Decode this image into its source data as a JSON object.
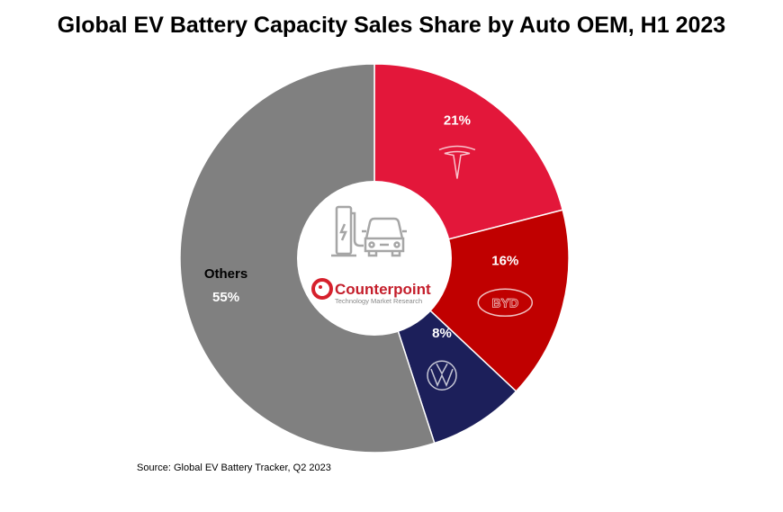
{
  "chart_data": {
    "type": "pie",
    "donut": true,
    "title": "Global EV Battery Capacity Sales Share by Auto OEM, H1 2023",
    "source": "Source: Global EV Battery Tracker, Q2 2023",
    "slices": [
      {
        "name": "Tesla",
        "value": 21,
        "label": "21%",
        "color": "#e3173a",
        "logo": "tesla-logo"
      },
      {
        "name": "BYD",
        "value": 16,
        "label": "16%",
        "color": "#c00000",
        "logo": "byd-logo"
      },
      {
        "name": "Volkswagen",
        "value": 8,
        "label": "8%",
        "color": "#1c1f5a",
        "logo": "vw-logo"
      },
      {
        "name": "Others",
        "value": 55,
        "label": "55%",
        "display_name": "Others",
        "color": "#808080"
      }
    ],
    "center": {
      "brand": "Counterpoint",
      "tagline": "Technology Market Research",
      "icon": "ev-charging-icon"
    }
  }
}
